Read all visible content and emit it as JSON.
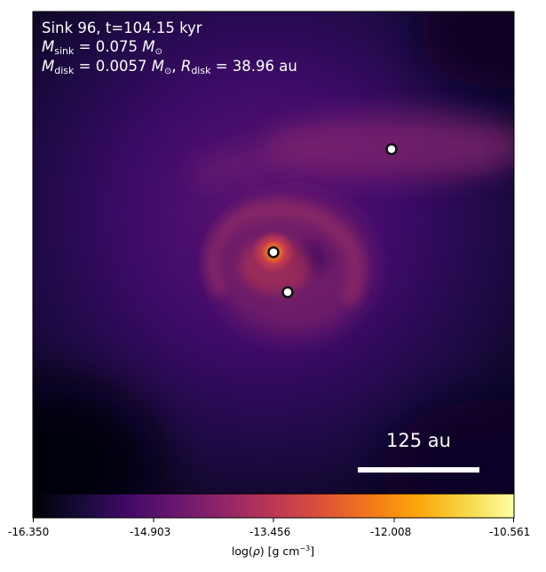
{
  "annotation": {
    "line1": "Sink 96, t=104.15 kyr",
    "msink_symbol": "M",
    "msink_sub": "sink",
    "msink_value": "= 0.075",
    "msun_symbol": "M",
    "msun_sub": "⊙",
    "mdisk_symbol": "M",
    "mdisk_sub": "disk",
    "mdisk_value": "= 0.0057",
    "comma": ",",
    "rdisk_symbol": "R",
    "rdisk_sub": "disk",
    "rdisk_value": "= 38.96",
    "rdisk_unit": "au"
  },
  "scalebar": {
    "label": "125 au"
  },
  "colorbar": {
    "ticks": [
      "-16.350",
      "-14.903",
      "-13.456",
      "-12.008",
      "-10.561"
    ],
    "label_prefix": "log(",
    "label_rho": "ρ",
    "label_mid": ") [g cm",
    "label_exp": "−3",
    "label_suffix": "]",
    "colormap": "inferno"
  },
  "colors": {
    "sink_fill": "#ffffff",
    "sink_ring": "#111111",
    "text": "#ffffff"
  }
}
